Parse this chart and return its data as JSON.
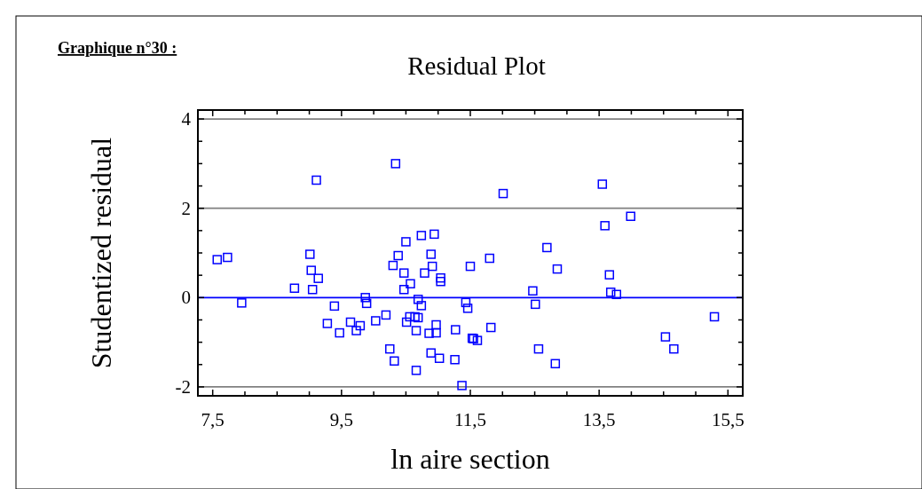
{
  "chart_data": {
    "type": "scatter",
    "title": "Residual Plot",
    "xlabel": "ln aire section",
    "ylabel": "Studentized residual",
    "annotations": [
      "Graphique n°30 :"
    ],
    "xlim": [
      7.27,
      15.73
    ],
    "ylim": [
      -2.2,
      4.2
    ],
    "xticks": [
      {
        "value": 7.5,
        "label": "7,5"
      },
      {
        "value": 8,
        "label": null
      },
      {
        "value": 8.5,
        "label": null
      },
      {
        "value": 9,
        "label": null
      },
      {
        "value": 9.5,
        "label": "9,5"
      },
      {
        "value": 10,
        "label": null
      },
      {
        "value": 10.5,
        "label": null
      },
      {
        "value": 11,
        "label": null
      },
      {
        "value": 11.5,
        "label": "11,5"
      },
      {
        "value": 12,
        "label": null
      },
      {
        "value": 12.5,
        "label": null
      },
      {
        "value": 13,
        "label": null
      },
      {
        "value": 13.5,
        "label": "13,5"
      },
      {
        "value": 14,
        "label": null
      },
      {
        "value": 14.5,
        "label": null
      },
      {
        "value": 15,
        "label": null
      },
      {
        "value": 15.5,
        "label": "15,5"
      }
    ],
    "yticks": [
      -2,
      {
        "value": -1.5,
        "label": null
      },
      {
        "value": -1,
        "label": null
      },
      {
        "value": -0.5,
        "label": null
      },
      0,
      {
        "value": 0.5,
        "label": null
      },
      {
        "value": 1,
        "label": null
      },
      {
        "value": 1.5,
        "label": null
      },
      2,
      {
        "value": 2.5,
        "label": null
      },
      {
        "value": 3,
        "label": null
      },
      {
        "value": 3.5,
        "label": null
      },
      4
    ],
    "ref_lines": [
      {
        "axis": "y",
        "value": 4,
        "color": "#808080"
      },
      {
        "axis": "y",
        "value": 2,
        "color": "#808080"
      },
      {
        "axis": "y",
        "value": 0,
        "color": "#0000ff"
      },
      {
        "axis": "y",
        "value": -2,
        "color": "#808080"
      }
    ],
    "marker": "square",
    "grid": false,
    "series": [
      {
        "color": "#0000ff",
        "x": [
          7.57,
          7.73,
          7.95,
          8.77,
          9.01,
          9.03,
          9.05,
          9.14,
          9.11,
          9.28,
          9.39,
          9.47,
          9.64,
          9.73,
          9.79,
          9.87,
          9.89,
          10.03,
          10.19,
          10.25,
          10.32,
          10.34,
          10.3,
          10.38,
          10.5,
          10.47,
          10.47,
          10.51,
          10.57,
          10.56,
          10.64,
          10.69,
          10.66,
          10.66,
          10.69,
          10.74,
          10.74,
          10.79,
          10.89,
          10.91,
          10.94,
          10.86,
          10.97,
          10.97,
          10.89,
          11.02,
          11.04,
          11.04,
          11.26,
          11.27,
          11.37,
          11.5,
          11.43,
          11.46,
          11.53,
          11.55,
          11.61,
          11.8,
          11.82,
          12.01,
          12.47,
          12.51,
          12.56,
          12.69,
          12.82,
          12.85,
          13.55,
          13.59,
          13.99,
          13.66,
          13.68,
          13.77,
          14.53,
          14.66,
          15.29
        ],
        "values": [
          0.85,
          0.9,
          -0.12,
          0.21,
          0.97,
          0.61,
          0.18,
          0.43,
          2.63,
          -0.58,
          -0.19,
          -0.79,
          -0.55,
          -0.74,
          -0.63,
          0.0,
          -0.13,
          -0.52,
          -0.39,
          -1.15,
          -1.42,
          3.0,
          0.72,
          0.94,
          1.25,
          0.55,
          0.18,
          -0.55,
          0.31,
          -0.43,
          -0.43,
          -0.45,
          -1.63,
          -0.74,
          -0.04,
          -0.18,
          1.39,
          0.55,
          0.97,
          0.7,
          1.42,
          -0.8,
          -0.61,
          -0.79,
          -1.24,
          -1.36,
          0.44,
          0.36,
          -1.39,
          -0.72,
          -1.97,
          0.7,
          -0.11,
          -0.24,
          -0.91,
          -0.92,
          -0.96,
          0.88,
          -0.67,
          2.33,
          0.15,
          -0.15,
          -1.15,
          1.12,
          -1.48,
          0.64,
          2.54,
          1.61,
          1.82,
          0.51,
          0.12,
          0.07,
          -0.88,
          -1.15,
          -0.43
        ]
      }
    ]
  }
}
